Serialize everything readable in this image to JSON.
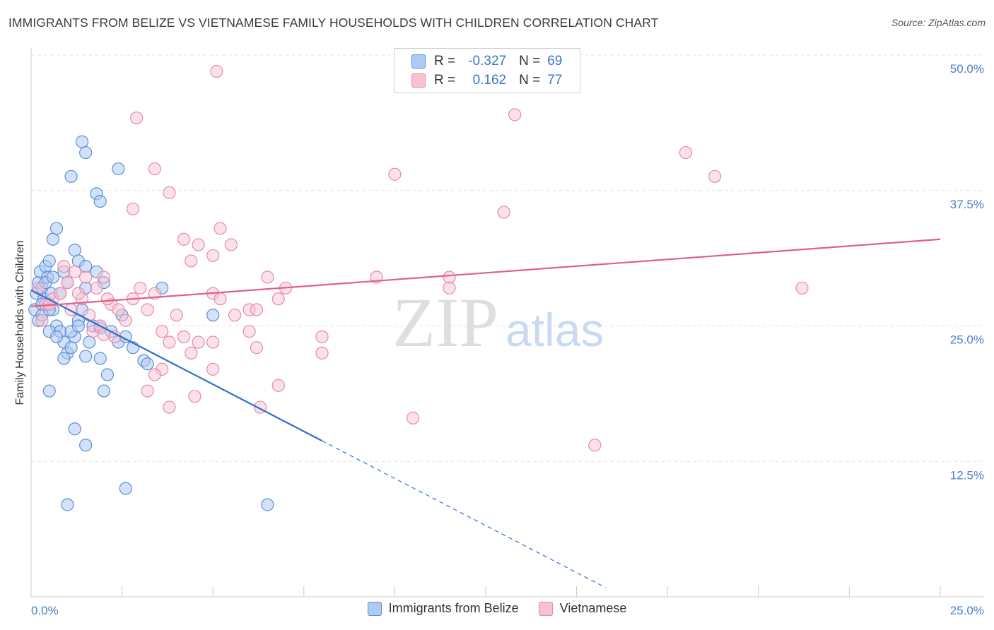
{
  "chart_data": {
    "type": "scatter",
    "title": "IMMIGRANTS FROM BELIZE VS VIETNAMESE FAMILY HOUSEHOLDS WITH CHILDREN CORRELATION CHART",
    "source": "Source: ZipAtlas.com",
    "watermark_zip": "ZIP",
    "watermark_atlas": "atlas",
    "ylabel": "Family Households with Children",
    "xlim": [
      0,
      25
    ],
    "ylim": [
      0,
      50
    ],
    "x_tick_labels": [
      "0.0%",
      "25.0%"
    ],
    "y_ticks": [
      12.5,
      25.0,
      37.5,
      50.0
    ],
    "y_tick_labels": [
      "12.5%",
      "25.0%",
      "37.5%",
      "50.0%"
    ],
    "colors": {
      "belize_fill": "#aecbf2",
      "belize_stroke": "#5b8fd6",
      "belize_line": "#2b6fd1",
      "viet_fill": "#f7c3d3",
      "viet_stroke": "#e78aa8",
      "viet_line": "#e0608a"
    },
    "legend": {
      "rows": [
        {
          "r_label": "R =",
          "r_value": "-0.327",
          "n_label": "N =",
          "n_value": "69"
        },
        {
          "r_label": "R =",
          "r_value": "0.162",
          "n_label": "N =",
          "n_value": "77"
        }
      ]
    },
    "series": [
      {
        "name": "Immigrants from Belize",
        "trend": {
          "x0": 0.0,
          "y0": 28.3,
          "x1": 8.0,
          "y1": 14.4,
          "dash_to_x": 15.8
        },
        "points": [
          [
            0.1,
            26.5
          ],
          [
            0.15,
            28.0
          ],
          [
            0.2,
            29.0
          ],
          [
            0.25,
            30.0
          ],
          [
            0.3,
            28.5
          ],
          [
            0.35,
            27.5
          ],
          [
            0.4,
            30.5
          ],
          [
            0.45,
            29.5
          ],
          [
            0.5,
            31.0
          ],
          [
            0.55,
            28.0
          ],
          [
            0.6,
            26.5
          ],
          [
            0.7,
            25.0
          ],
          [
            0.8,
            24.5
          ],
          [
            0.9,
            23.5
          ],
          [
            1.0,
            22.5
          ],
          [
            1.1,
            23.0
          ],
          [
            1.2,
            24.0
          ],
          [
            1.3,
            25.5
          ],
          [
            1.4,
            26.5
          ],
          [
            1.5,
            28.5
          ],
          [
            0.2,
            25.5
          ],
          [
            0.3,
            27.0
          ],
          [
            0.5,
            24.5
          ],
          [
            0.6,
            33.0
          ],
          [
            0.7,
            34.0
          ],
          [
            0.9,
            30.0
          ],
          [
            1.0,
            29.0
          ],
          [
            0.8,
            28.0
          ],
          [
            0.4,
            29.0
          ],
          [
            0.6,
            29.5
          ],
          [
            1.2,
            32.0
          ],
          [
            1.3,
            31.0
          ],
          [
            1.5,
            30.5
          ],
          [
            1.8,
            30.0
          ],
          [
            2.0,
            29.0
          ],
          [
            0.3,
            26.0
          ],
          [
            0.5,
            26.5
          ],
          [
            0.7,
            24.0
          ],
          [
            0.9,
            22.0
          ],
          [
            1.1,
            24.5
          ],
          [
            1.4,
            42.0
          ],
          [
            1.5,
            41.0
          ],
          [
            1.1,
            38.8
          ],
          [
            1.8,
            37.2
          ],
          [
            1.9,
            36.5
          ],
          [
            2.4,
            39.5
          ],
          [
            1.3,
            25.0
          ],
          [
            1.6,
            23.5
          ],
          [
            1.9,
            22.0
          ],
          [
            2.1,
            20.5
          ],
          [
            2.4,
            23.5
          ],
          [
            2.5,
            26.0
          ],
          [
            2.6,
            24.0
          ],
          [
            2.8,
            23.0
          ],
          [
            3.1,
            21.8
          ],
          [
            3.2,
            21.5
          ],
          [
            3.6,
            28.5
          ],
          [
            2.2,
            24.5
          ],
          [
            1.7,
            25.0
          ],
          [
            1.5,
            22.2
          ],
          [
            1.9,
            24.8
          ],
          [
            0.5,
            19.0
          ],
          [
            2.0,
            19.0
          ],
          [
            1.2,
            15.5
          ],
          [
            1.5,
            14.0
          ],
          [
            2.6,
            10.0
          ],
          [
            1.0,
            8.5
          ],
          [
            6.5,
            8.5
          ],
          [
            5.0,
            26.0
          ]
        ]
      },
      {
        "name": "Vietnamese",
        "trend": {
          "x0": 0.0,
          "y0": 26.8,
          "x1": 25.0,
          "y1": 33.0
        },
        "points": [
          [
            0.2,
            28.5
          ],
          [
            0.4,
            27.0
          ],
          [
            0.6,
            27.5
          ],
          [
            0.8,
            28.0
          ],
          [
            1.0,
            29.0
          ],
          [
            1.2,
            30.0
          ],
          [
            1.4,
            27.5
          ],
          [
            1.6,
            26.0
          ],
          [
            1.8,
            28.5
          ],
          [
            2.0,
            29.5
          ],
          [
            2.2,
            27.0
          ],
          [
            2.4,
            26.5
          ],
          [
            2.6,
            25.5
          ],
          [
            2.8,
            27.5
          ],
          [
            3.0,
            28.5
          ],
          [
            3.2,
            26.5
          ],
          [
            3.4,
            28.0
          ],
          [
            3.6,
            24.5
          ],
          [
            3.8,
            23.5
          ],
          [
            4.0,
            26.0
          ],
          [
            0.3,
            25.5
          ],
          [
            0.5,
            27.0
          ],
          [
            0.9,
            30.5
          ],
          [
            1.1,
            26.5
          ],
          [
            1.3,
            28.0
          ],
          [
            1.5,
            29.5
          ],
          [
            1.7,
            24.5
          ],
          [
            1.9,
            25.0
          ],
          [
            2.1,
            27.5
          ],
          [
            2.3,
            24.0
          ],
          [
            5.1,
            48.5
          ],
          [
            2.9,
            44.2
          ],
          [
            3.4,
            39.5
          ],
          [
            3.8,
            37.3
          ],
          [
            2.8,
            35.8
          ],
          [
            4.2,
            33.0
          ],
          [
            4.4,
            31.0
          ],
          [
            4.6,
            32.5
          ],
          [
            5.0,
            31.5
          ],
          [
            5.2,
            34.0
          ],
          [
            5.5,
            32.5
          ],
          [
            5.0,
            28.0
          ],
          [
            5.6,
            26.0
          ],
          [
            5.2,
            27.5
          ],
          [
            6.0,
            26.5
          ],
          [
            6.2,
            26.5
          ],
          [
            6.5,
            29.5
          ],
          [
            6.8,
            27.5
          ],
          [
            6.0,
            24.5
          ],
          [
            6.2,
            23.0
          ],
          [
            5.0,
            23.5
          ],
          [
            4.6,
            23.5
          ],
          [
            4.4,
            22.5
          ],
          [
            4.2,
            24.0
          ],
          [
            3.6,
            21.0
          ],
          [
            3.4,
            20.5
          ],
          [
            3.2,
            19.0
          ],
          [
            3.8,
            17.5
          ],
          [
            4.5,
            18.5
          ],
          [
            5.0,
            21.0
          ],
          [
            6.3,
            17.5
          ],
          [
            6.8,
            19.5
          ],
          [
            8.0,
            24.0
          ],
          [
            8.0,
            22.5
          ],
          [
            10.0,
            39.0
          ],
          [
            11.5,
            29.5
          ],
          [
            11.5,
            28.5
          ],
          [
            10.5,
            16.5
          ],
          [
            13.0,
            35.5
          ],
          [
            13.3,
            44.5
          ],
          [
            18.0,
            41.0
          ],
          [
            18.8,
            38.8
          ],
          [
            21.2,
            28.5
          ],
          [
            15.5,
            14.0
          ],
          [
            9.5,
            29.5
          ],
          [
            7.0,
            28.5
          ],
          [
            2.0,
            24.2
          ]
        ]
      }
    ]
  }
}
